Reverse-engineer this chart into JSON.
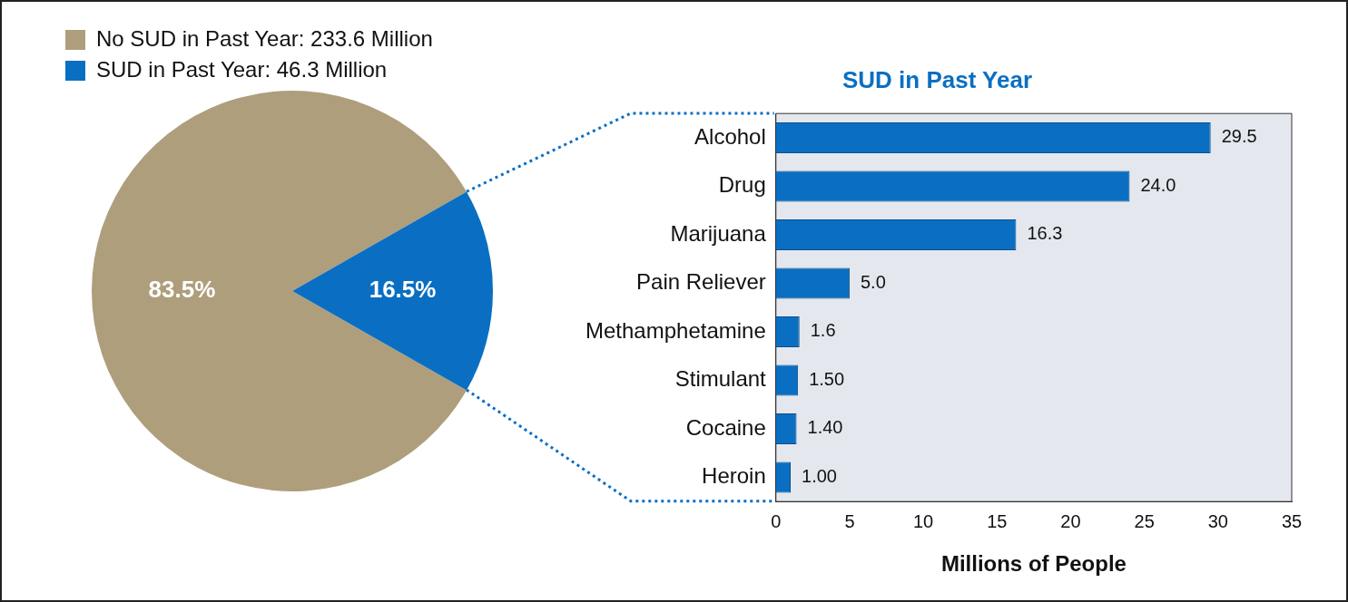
{
  "chart_data": [
    {
      "type": "pie",
      "categories": [
        "No SUD in Past Year: 233.6 Million",
        "SUD in Past Year: 46.3 Million"
      ],
      "values": [
        83.5,
        16.5
      ],
      "colors": [
        "#ae9e7c",
        "#0a6fc2"
      ],
      "value_labels": [
        "83.5%",
        "16.5%"
      ],
      "legend": "top left"
    },
    {
      "type": "bar",
      "orientation": "horizontal",
      "title": "SUD in Past Year",
      "categories": [
        "Alcohol",
        "Drug",
        "Marijuana",
        "Pain Reliever",
        "Methamphetamine",
        "Stimulant",
        "Cocaine",
        "Heroin"
      ],
      "values": [
        29.5,
        24.0,
        16.3,
        5.0,
        1.6,
        1.5,
        1.4,
        1.0
      ],
      "value_labels": [
        "29.5",
        "24.0",
        "16.3",
        "5.0",
        "1.6",
        "1.50",
        "1.40",
        "1.00"
      ],
      "color": "#0a6fc2",
      "xlim": [
        0,
        35
      ],
      "xticks": [
        0,
        5,
        10,
        15,
        20,
        25,
        30,
        35
      ],
      "xlabel": "Millions of People"
    }
  ]
}
